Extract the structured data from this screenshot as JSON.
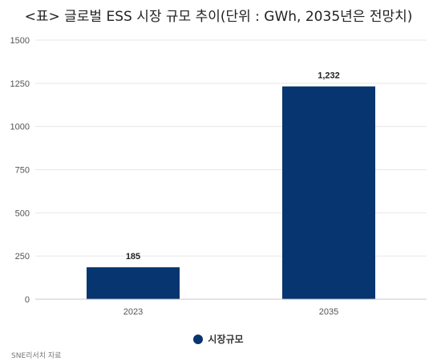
{
  "chart_data": {
    "type": "bar",
    "title": "<표> 글로벌 ESS 시장 규모 추이(단위 : GWh, 2035년은 전망치)",
    "categories": [
      "2023",
      "2035"
    ],
    "series": [
      {
        "name": "시장규모",
        "values": [
          185,
          1232
        ],
        "labels": [
          "185",
          "1,232"
        ]
      }
    ],
    "yticks": [
      "0",
      "250",
      "500",
      "750",
      "1000",
      "1250",
      "1500"
    ],
    "ylim": [
      0,
      1500
    ],
    "grid": true,
    "legend_position": "bottom",
    "bar_color": "#06356f"
  },
  "source": "SNE리서치 자료"
}
